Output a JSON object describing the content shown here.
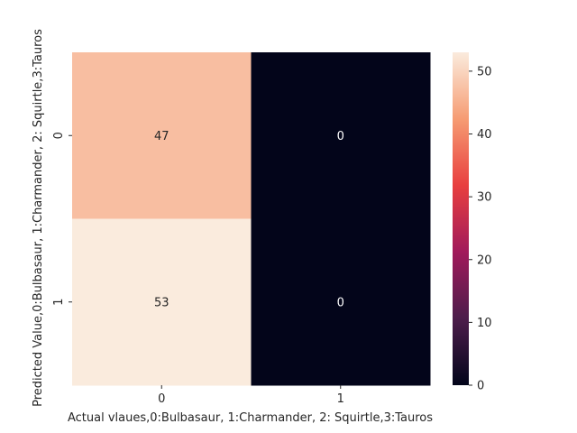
{
  "chart_data": {
    "type": "heatmap",
    "title": "",
    "xlabel": "Actual vlaues,0:Bulbasaur, 1:Charmander, 2: Squirtle,3:Tauros",
    "ylabel": "Predicted Value,0:Bulbasaur, 1:Charmander, 2: Squirtle,3:Tauros",
    "x_ticks": [
      "0",
      "1"
    ],
    "y_ticks": [
      "0",
      "1"
    ],
    "values": [
      [
        47,
        0
      ],
      [
        53,
        0
      ]
    ],
    "colorbar": {
      "min": 0,
      "max": 53,
      "ticks": [
        0,
        10,
        20,
        30,
        40,
        50
      ],
      "colormap": "rocket",
      "stops": [
        "#03051a",
        "#4c1d4b",
        "#a11a5b",
        "#e83f3f",
        "#f69c73",
        "#faebdd"
      ]
    }
  }
}
